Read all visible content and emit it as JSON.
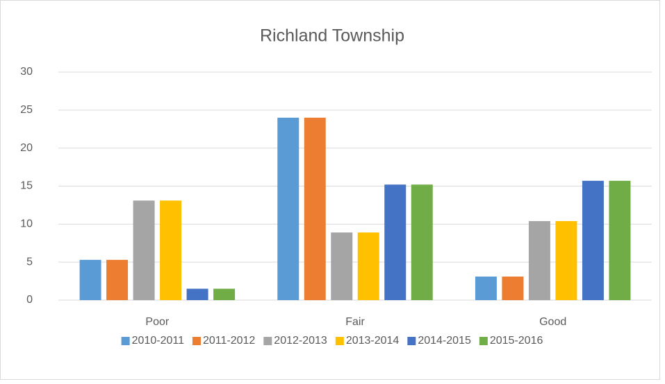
{
  "chart_data": {
    "type": "bar",
    "title": "Richland Township",
    "categories": [
      "Poor",
      "Fair",
      "Good"
    ],
    "series": [
      {
        "name": "2010-2011",
        "color": "#5b9bd5",
        "values": [
          5.3,
          24,
          3.1
        ]
      },
      {
        "name": "2011-2012",
        "color": "#ed7d31",
        "values": [
          5.3,
          24,
          3.1
        ]
      },
      {
        "name": "2012-2013",
        "color": "#a5a5a5",
        "values": [
          13.1,
          8.9,
          10.4
        ]
      },
      {
        "name": "2013-2014",
        "color": "#ffc000",
        "values": [
          13.1,
          8.9,
          10.4
        ]
      },
      {
        "name": "2014-2015",
        "color": "#4472c4",
        "values": [
          1.5,
          15.2,
          15.7
        ]
      },
      {
        "name": "2015-2016",
        "color": "#70ad47",
        "values": [
          1.5,
          15.2,
          15.7
        ]
      }
    ],
    "ylim": [
      0,
      30
    ],
    "yticks": [
      0,
      5,
      10,
      15,
      20,
      25,
      30
    ],
    "grid": true,
    "legend": "bottom"
  }
}
